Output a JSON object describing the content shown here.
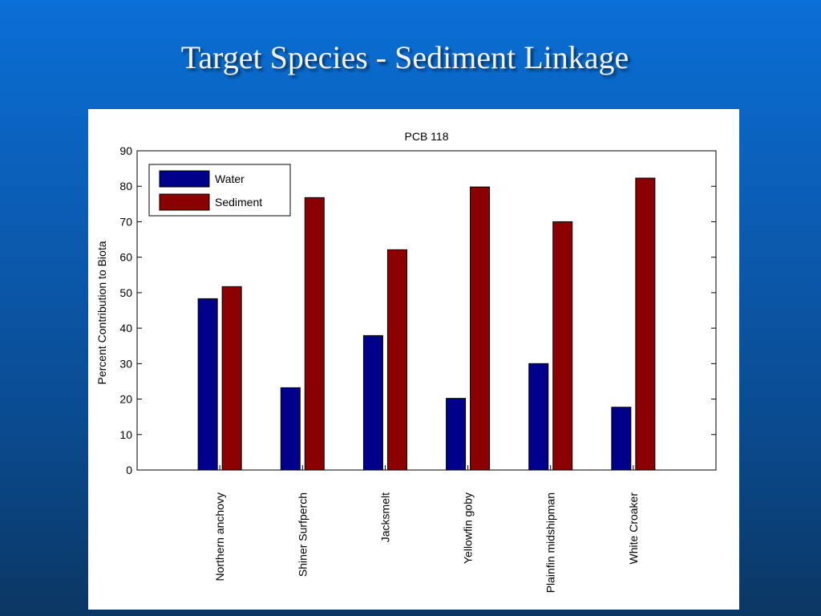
{
  "slide": {
    "title": "Target Species - Sediment Linkage"
  },
  "colors": {
    "water": "#00008b",
    "sediment": "#8b0000"
  },
  "chart_data": {
    "type": "bar",
    "title": "PCB 118",
    "xlabel": "",
    "ylabel": "Percent Contribution to Biota",
    "ylim": [
      0,
      90
    ],
    "yticks": [
      0,
      10,
      20,
      30,
      40,
      50,
      60,
      70,
      80,
      90
    ],
    "categories": [
      "Northern anchovy",
      "Shiner Surfperch",
      "Jacksmelt",
      "Yellowfin goby",
      "Plainfin midshipman",
      "White Croaker"
    ],
    "series": [
      {
        "name": "Water",
        "color": "#00008b",
        "values": [
          48.3,
          23.2,
          37.9,
          20.2,
          30,
          17.7
        ]
      },
      {
        "name": "Sediment",
        "color": "#8b0000",
        "values": [
          51.7,
          76.8,
          62.1,
          79.8,
          70,
          82.3
        ]
      }
    ],
    "legend": "top-left",
    "grid": false
  }
}
